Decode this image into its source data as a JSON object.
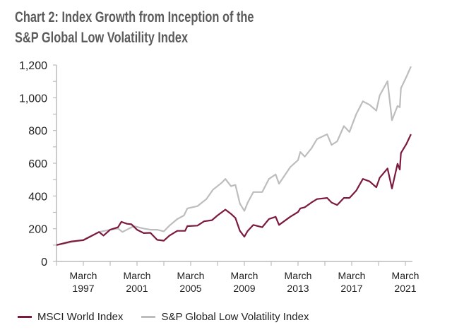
{
  "chart_data": {
    "type": "line",
    "title": "Chart 2: Index Growth from Inception of the S&P Global Low Volatility Index",
    "title_lines": [
      "Chart 2: Index Growth from Inception of the",
      "S&P Global Low Volatility Index"
    ],
    "xlabel": "",
    "ylabel": "",
    "ylim": [
      0,
      1200
    ],
    "y_ticks": [
      "0",
      "200",
      "400",
      "600",
      "800",
      "1,000",
      "1,200"
    ],
    "x_range": [
      "1995-03",
      "2021-08"
    ],
    "x_ticks": [
      {
        "month": "March",
        "year": "1997"
      },
      {
        "month": "March",
        "year": "2001"
      },
      {
        "month": "March",
        "year": "2005"
      },
      {
        "month": "March",
        "year": "2009"
      },
      {
        "month": "March",
        "year": "2013"
      },
      {
        "month": "March",
        "year": "2017"
      },
      {
        "month": "March",
        "year": "2021"
      }
    ],
    "grid": false,
    "legend_position": "bottom",
    "series": [
      {
        "name": "MSCI World Index",
        "color": "#7b1a3e",
        "points": [
          [
            "1995-03",
            100
          ],
          [
            "1996-04",
            122
          ],
          [
            "1997-03",
            130
          ],
          [
            "1997-09",
            151
          ],
          [
            "1998-05",
            180
          ],
          [
            "1998-09",
            158
          ],
          [
            "1999-03",
            194
          ],
          [
            "1999-10",
            209
          ],
          [
            "2000-01",
            242
          ],
          [
            "2000-06",
            230
          ],
          [
            "2000-10",
            227
          ],
          [
            "2001-03",
            194
          ],
          [
            "2001-09",
            173
          ],
          [
            "2002-03",
            175
          ],
          [
            "2002-09",
            132
          ],
          [
            "2003-03",
            127
          ],
          [
            "2003-08",
            158
          ],
          [
            "2004-03",
            187
          ],
          [
            "2004-10",
            187
          ],
          [
            "2004-12",
            216
          ],
          [
            "2005-09",
            219
          ],
          [
            "2006-03",
            245
          ],
          [
            "2006-10",
            252
          ],
          [
            "2007-03",
            281
          ],
          [
            "2007-10",
            317
          ],
          [
            "2008-03",
            291
          ],
          [
            "2008-07",
            266
          ],
          [
            "2008-11",
            187
          ],
          [
            "2009-03",
            151
          ],
          [
            "2009-06",
            187
          ],
          [
            "2009-11",
            223
          ],
          [
            "2010-07",
            209
          ],
          [
            "2011-01",
            259
          ],
          [
            "2011-07",
            273
          ],
          [
            "2011-10",
            223
          ],
          [
            "2012-08",
            273
          ],
          [
            "2013-03",
            302
          ],
          [
            "2013-05",
            324
          ],
          [
            "2013-09",
            331
          ],
          [
            "2014-03",
            360
          ],
          [
            "2014-08",
            381
          ],
          [
            "2015-05",
            388
          ],
          [
            "2015-09",
            360
          ],
          [
            "2016-02",
            345
          ],
          [
            "2016-08",
            388
          ],
          [
            "2017-01",
            388
          ],
          [
            "2017-07",
            432
          ],
          [
            "2018-01",
            504
          ],
          [
            "2018-07",
            489
          ],
          [
            "2019-01",
            453
          ],
          [
            "2019-04",
            511
          ],
          [
            "2019-11",
            568
          ],
          [
            "2020-03",
            446
          ],
          [
            "2020-08",
            597
          ],
          [
            "2020-10",
            561
          ],
          [
            "2020-11",
            662
          ],
          [
            "2021-04",
            719
          ],
          [
            "2021-08",
            777
          ]
        ]
      },
      {
        "name": "S&P Global Low Volatility Index",
        "color": "#bdbdbd",
        "points": [
          [
            "1995-03",
            100
          ],
          [
            "1997-03",
            132
          ],
          [
            "1998-05",
            180
          ],
          [
            "1999-03",
            194
          ],
          [
            "1999-10",
            201
          ],
          [
            "2000-02",
            180
          ],
          [
            "2000-12",
            216
          ],
          [
            "2001-09",
            201
          ],
          [
            "2002-03",
            194
          ],
          [
            "2002-09",
            194
          ],
          [
            "2003-03",
            184
          ],
          [
            "2003-08",
            219
          ],
          [
            "2004-03",
            259
          ],
          [
            "2004-09",
            281
          ],
          [
            "2004-12",
            324
          ],
          [
            "2005-09",
            338
          ],
          [
            "2006-05",
            381
          ],
          [
            "2006-11",
            439
          ],
          [
            "2007-07",
            482
          ],
          [
            "2007-10",
            504
          ],
          [
            "2008-03",
            460
          ],
          [
            "2008-07",
            468
          ],
          [
            "2008-11",
            353
          ],
          [
            "2009-03",
            309
          ],
          [
            "2009-06",
            360
          ],
          [
            "2009-11",
            424
          ],
          [
            "2010-07",
            424
          ],
          [
            "2011-01",
            504
          ],
          [
            "2011-07",
            532
          ],
          [
            "2011-10",
            475
          ],
          [
            "2012-08",
            576
          ],
          [
            "2013-03",
            619
          ],
          [
            "2013-05",
            669
          ],
          [
            "2013-09",
            640
          ],
          [
            "2014-03",
            691
          ],
          [
            "2014-08",
            748
          ],
          [
            "2015-05",
            777
          ],
          [
            "2015-09",
            712
          ],
          [
            "2016-02",
            734
          ],
          [
            "2016-08",
            827
          ],
          [
            "2017-01",
            791
          ],
          [
            "2017-07",
            899
          ],
          [
            "2018-01",
            978
          ],
          [
            "2018-07",
            957
          ],
          [
            "2019-01",
            921
          ],
          [
            "2019-04",
            1014
          ],
          [
            "2019-11",
            1101
          ],
          [
            "2020-03",
            863
          ],
          [
            "2020-08",
            950
          ],
          [
            "2020-10",
            942
          ],
          [
            "2020-11",
            1058
          ],
          [
            "2021-04",
            1129
          ],
          [
            "2021-08",
            1191
          ]
        ]
      }
    ]
  }
}
